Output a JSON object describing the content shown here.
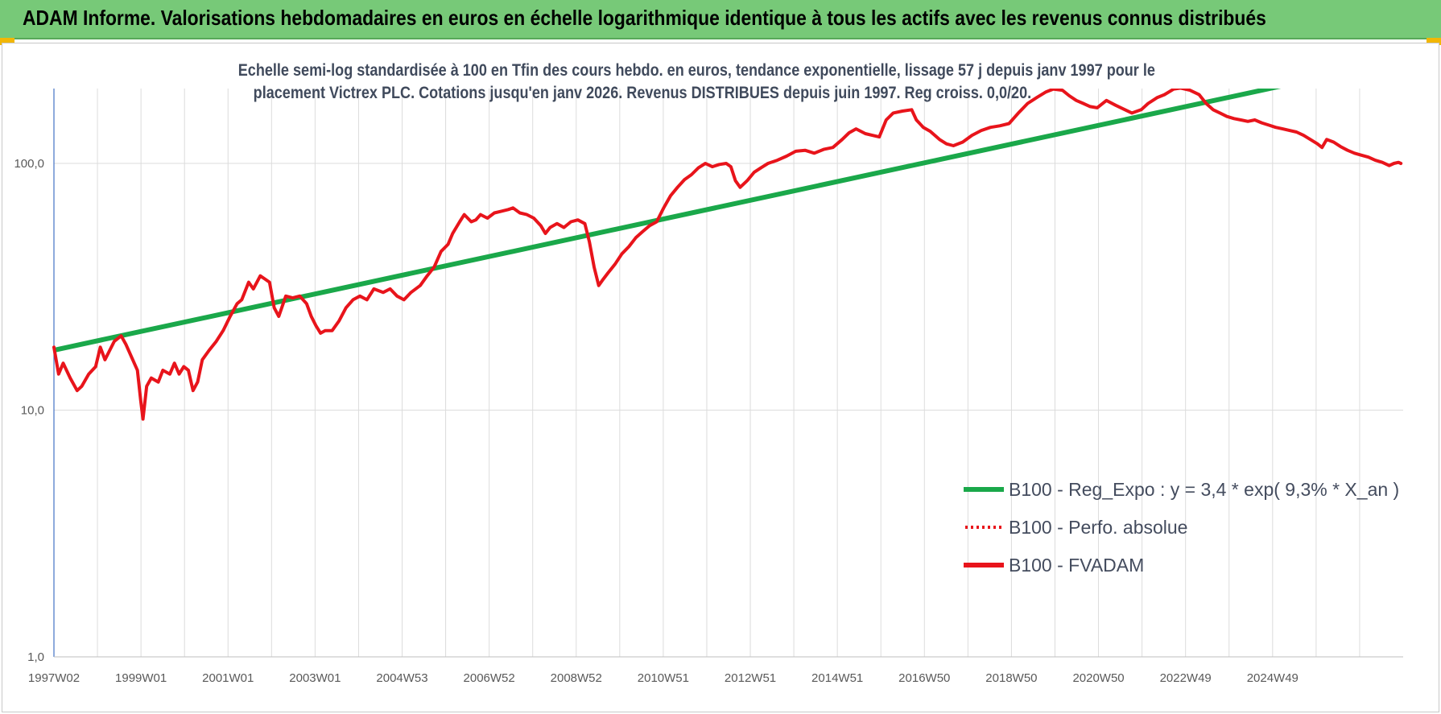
{
  "page": {
    "title": "ADAM Informe. Valorisations hebdomadaires en euros en échelle logarithmique identique à tous les actifs avec les revenus connus distribués"
  },
  "chart_data": {
    "type": "line",
    "subtitle_lines": [
      "Echelle semi-log standardisée à 100 en Tfin des cours hebdo. en euros, tendance exponentielle, lissage 57 j depuis janv 1997 pour le",
      "placement Victrex PLC. Cotations jusqu'en janv 2026.  Revenus DISTRIBUES depuis juin 1997. Reg croiss. 0,0/20."
    ],
    "y_scale": "log",
    "ylim": [
      1,
      200
    ],
    "y_ticks": [
      "1,0",
      "10,0",
      "100,0"
    ],
    "x_tick_labels": [
      "1997W02",
      "1999W01",
      "2001W01",
      "2003W01",
      "2004W53",
      "2006W52",
      "2008W52",
      "2010W51",
      "2012W51",
      "2014W51",
      "2016W50",
      "2018W50",
      "2020W50",
      "2022W49",
      "2024W49"
    ],
    "grid": true,
    "legend_position": "bottom-right",
    "series": [
      {
        "name": "B100 - Reg_Expo : y = 3,4 * exp( 9,3% *  X_an )",
        "color": "#1aa84a",
        "style": "solid",
        "points": [
          [
            1997.0,
            17.5
          ],
          [
            2026.1,
            263.0
          ]
        ]
      },
      {
        "name": "B100 - Perfo. absolue",
        "color": "#e8141b",
        "style": "dotted",
        "points": []
      },
      {
        "name": "B100 - FVADAM",
        "color": "#e8141b",
        "style": "solid",
        "points": [
          [
            1997.0,
            18
          ],
          [
            1997.1,
            14
          ],
          [
            1997.2,
            15.5
          ],
          [
            1997.35,
            13.5
          ],
          [
            1997.5,
            12
          ],
          [
            1997.6,
            12.5
          ],
          [
            1997.75,
            14
          ],
          [
            1997.9,
            15
          ],
          [
            1998.0,
            18
          ],
          [
            1998.1,
            16
          ],
          [
            1998.3,
            19
          ],
          [
            1998.45,
            20
          ],
          [
            1998.55,
            18.5
          ],
          [
            1998.7,
            16
          ],
          [
            1998.8,
            14.5
          ],
          [
            1998.87,
            11
          ],
          [
            1998.92,
            9.2
          ],
          [
            1999.0,
            12.5
          ],
          [
            1999.1,
            13.5
          ],
          [
            1999.25,
            13
          ],
          [
            1999.35,
            14.5
          ],
          [
            1999.5,
            14
          ],
          [
            1999.6,
            15.5
          ],
          [
            1999.7,
            14
          ],
          [
            1999.8,
            15
          ],
          [
            1999.9,
            14.5
          ],
          [
            2000.0,
            12
          ],
          [
            2000.1,
            13
          ],
          [
            2000.2,
            16
          ],
          [
            2000.35,
            17.5
          ],
          [
            2000.5,
            19
          ],
          [
            2000.65,
            21
          ],
          [
            2000.8,
            24
          ],
          [
            2000.95,
            27
          ],
          [
            2001.05,
            28
          ],
          [
            2001.2,
            33
          ],
          [
            2001.3,
            31
          ],
          [
            2001.45,
            35
          ],
          [
            2001.55,
            34
          ],
          [
            2001.65,
            33
          ],
          [
            2001.75,
            26
          ],
          [
            2001.85,
            24
          ],
          [
            2002.0,
            29
          ],
          [
            2002.15,
            28.5
          ],
          [
            2002.3,
            29
          ],
          [
            2002.45,
            27
          ],
          [
            2002.55,
            24
          ],
          [
            2002.65,
            22
          ],
          [
            2002.75,
            20.5
          ],
          [
            2002.85,
            21
          ],
          [
            2003.0,
            21
          ],
          [
            2003.15,
            23
          ],
          [
            2003.3,
            26
          ],
          [
            2003.45,
            28
          ],
          [
            2003.6,
            29
          ],
          [
            2003.75,
            28
          ],
          [
            2003.9,
            31
          ],
          [
            2004.1,
            30
          ],
          [
            2004.25,
            31
          ],
          [
            2004.4,
            29
          ],
          [
            2004.55,
            28
          ],
          [
            2004.7,
            30
          ],
          [
            2004.9,
            32
          ],
          [
            2005.05,
            35
          ],
          [
            2005.2,
            38
          ],
          [
            2005.35,
            44
          ],
          [
            2005.5,
            47
          ],
          [
            2005.6,
            52
          ],
          [
            2005.75,
            58
          ],
          [
            2005.85,
            62
          ],
          [
            2006.0,
            58
          ],
          [
            2006.1,
            59
          ],
          [
            2006.2,
            62
          ],
          [
            2006.35,
            60
          ],
          [
            2006.5,
            63
          ],
          [
            2006.65,
            64
          ],
          [
            2006.8,
            65
          ],
          [
            2006.9,
            66
          ],
          [
            2007.05,
            63
          ],
          [
            2007.2,
            62
          ],
          [
            2007.35,
            60
          ],
          [
            2007.5,
            56
          ],
          [
            2007.6,
            52
          ],
          [
            2007.7,
            55
          ],
          [
            2007.85,
            57
          ],
          [
            2008.0,
            55
          ],
          [
            2008.15,
            58
          ],
          [
            2008.3,
            59
          ],
          [
            2008.45,
            57
          ],
          [
            2008.55,
            48
          ],
          [
            2008.65,
            38
          ],
          [
            2008.75,
            32
          ],
          [
            2008.85,
            34
          ],
          [
            2008.95,
            36
          ],
          [
            2009.1,
            39
          ],
          [
            2009.25,
            43
          ],
          [
            2009.4,
            46
          ],
          [
            2009.55,
            50
          ],
          [
            2009.7,
            53
          ],
          [
            2009.85,
            56
          ],
          [
            2010.0,
            58
          ],
          [
            2010.15,
            66
          ],
          [
            2010.3,
            74
          ],
          [
            2010.45,
            80
          ],
          [
            2010.6,
            86
          ],
          [
            2010.75,
            90
          ],
          [
            2010.9,
            96
          ],
          [
            2011.05,
            100
          ],
          [
            2011.2,
            97
          ],
          [
            2011.35,
            99
          ],
          [
            2011.5,
            100
          ],
          [
            2011.6,
            97
          ],
          [
            2011.7,
            85
          ],
          [
            2011.8,
            80
          ],
          [
            2011.95,
            85
          ],
          [
            2012.1,
            92
          ],
          [
            2012.25,
            96
          ],
          [
            2012.4,
            100
          ],
          [
            2012.6,
            103
          ],
          [
            2012.8,
            107
          ],
          [
            2013.0,
            112
          ],
          [
            2013.2,
            113
          ],
          [
            2013.4,
            110
          ],
          [
            2013.6,
            114
          ],
          [
            2013.8,
            116
          ],
          [
            2014.0,
            125
          ],
          [
            2014.15,
            133
          ],
          [
            2014.3,
            138
          ],
          [
            2014.5,
            132
          ],
          [
            2014.65,
            130
          ],
          [
            2014.8,
            128
          ],
          [
            2014.95,
            150
          ],
          [
            2015.1,
            160
          ],
          [
            2015.3,
            163
          ],
          [
            2015.5,
            165
          ],
          [
            2015.6,
            150
          ],
          [
            2015.75,
            140
          ],
          [
            2015.9,
            135
          ],
          [
            2016.1,
            125
          ],
          [
            2016.25,
            120
          ],
          [
            2016.4,
            118
          ],
          [
            2016.6,
            122
          ],
          [
            2016.8,
            130
          ],
          [
            2017.0,
            136
          ],
          [
            2017.2,
            140
          ],
          [
            2017.4,
            142
          ],
          [
            2017.6,
            145
          ],
          [
            2017.8,
            160
          ],
          [
            2018.0,
            175
          ],
          [
            2018.2,
            185
          ],
          [
            2018.4,
            195
          ],
          [
            2018.55,
            200
          ],
          [
            2018.75,
            198
          ],
          [
            2018.9,
            188
          ],
          [
            2019.05,
            180
          ],
          [
            2019.2,
            175
          ],
          [
            2019.35,
            170
          ],
          [
            2019.5,
            168
          ],
          [
            2019.7,
            180
          ],
          [
            2019.9,
            172
          ],
          [
            2020.1,
            165
          ],
          [
            2020.25,
            160
          ],
          [
            2020.45,
            165
          ],
          [
            2020.6,
            175
          ],
          [
            2020.8,
            185
          ],
          [
            2020.95,
            190
          ],
          [
            2021.15,
            200
          ],
          [
            2021.3,
            202
          ],
          [
            2021.5,
            198
          ],
          [
            2021.7,
            190
          ],
          [
            2021.85,
            175
          ],
          [
            2022.0,
            165
          ],
          [
            2022.15,
            160
          ],
          [
            2022.3,
            155
          ],
          [
            2022.45,
            152
          ],
          [
            2022.6,
            150
          ],
          [
            2022.75,
            148
          ],
          [
            2022.9,
            150
          ],
          [
            2023.05,
            146
          ],
          [
            2023.2,
            143
          ],
          [
            2023.35,
            140
          ],
          [
            2023.5,
            138
          ],
          [
            2023.65,
            136
          ],
          [
            2023.8,
            134
          ],
          [
            2023.95,
            130
          ],
          [
            2024.1,
            125
          ],
          [
            2024.25,
            120
          ],
          [
            2024.35,
            116
          ],
          [
            2024.45,
            125
          ],
          [
            2024.6,
            122
          ],
          [
            2024.75,
            117
          ],
          [
            2024.9,
            113
          ],
          [
            2025.05,
            110
          ],
          [
            2025.2,
            108
          ],
          [
            2025.35,
            106
          ],
          [
            2025.5,
            103
          ],
          [
            2025.65,
            101
          ],
          [
            2025.8,
            98
          ],
          [
            2025.9,
            100
          ],
          [
            2026.0,
            101
          ],
          [
            2026.05,
            100
          ]
        ]
      }
    ]
  }
}
